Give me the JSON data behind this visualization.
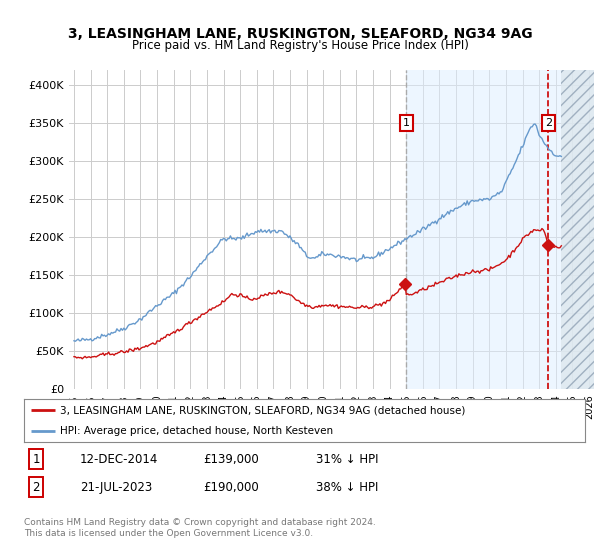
{
  "title": "3, LEASINGHAM LANE, RUSKINGTON, SLEAFORD, NG34 9AG",
  "subtitle": "Price paid vs. HM Land Registry's House Price Index (HPI)",
  "ylim": [
    0,
    420000
  ],
  "yticks": [
    0,
    50000,
    100000,
    150000,
    200000,
    250000,
    300000,
    350000,
    400000
  ],
  "xlim": [
    1994.7,
    2026.3
  ],
  "fig_bg": "#ffffff",
  "plot_bg": "#ffffff",
  "hpi_color": "#6699cc",
  "price_color": "#cc1111",
  "vline1_color": "#aaaaaa",
  "vline2_color": "#cc0000",
  "shade_color": "#ddeeff",
  "hatch_color": "#bbccdd",
  "vline1_x": 2015.0,
  "vline2_x": 2023.55,
  "shade_start": 2015.0,
  "shade_end": 2024.3,
  "hatch_start": 2024.3,
  "marker_y": 350000,
  "sale1_x": 2014.92,
  "sale1_y": 139000,
  "sale2_x": 2023.55,
  "sale2_y": 190000,
  "legend_label1": "3, LEASINGHAM LANE, RUSKINGTON, SLEAFORD, NG34 9AG (detached house)",
  "legend_label2": "HPI: Average price, detached house, North Kesteven",
  "row1_num": "1",
  "row1_date": "12-DEC-2014",
  "row1_price": "£139,000",
  "row1_note": "31% ↓ HPI",
  "row2_num": "2",
  "row2_date": "21-JUL-2023",
  "row2_price": "£190,000",
  "row2_note": "38% ↓ HPI",
  "footer_line1": "Contains HM Land Registry data © Crown copyright and database right 2024.",
  "footer_line2": "This data is licensed under the Open Government Licence v3.0."
}
